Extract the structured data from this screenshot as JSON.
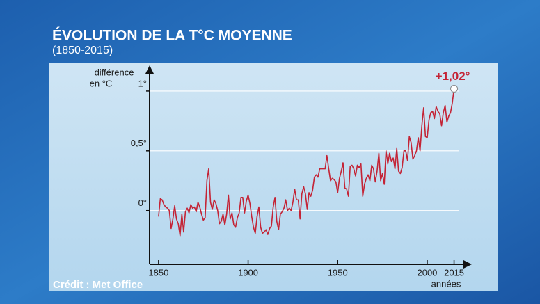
{
  "chart_data": {
    "type": "line",
    "title": "ÉVOLUTION DE LA T°C MOYENNE",
    "subtitle": "(1850-2015)",
    "ylabel": [
      "différence",
      "en °C"
    ],
    "xlabel": "années",
    "annotation": "+1,02°",
    "credit": "Crédit : Met Office",
    "color": "#c42335",
    "grid": true,
    "x": [
      1850,
      1851,
      1852,
      1853,
      1854,
      1855,
      1856,
      1857,
      1858,
      1859,
      1860,
      1861,
      1862,
      1863,
      1864,
      1865,
      1866,
      1867,
      1868,
      1869,
      1870,
      1871,
      1872,
      1873,
      1874,
      1875,
      1876,
      1877,
      1878,
      1879,
      1880,
      1881,
      1882,
      1883,
      1884,
      1885,
      1886,
      1887,
      1888,
      1889,
      1890,
      1891,
      1892,
      1893,
      1894,
      1895,
      1896,
      1897,
      1898,
      1899,
      1900,
      1901,
      1902,
      1903,
      1904,
      1905,
      1906,
      1907,
      1908,
      1909,
      1910,
      1911,
      1912,
      1913,
      1914,
      1915,
      1916,
      1917,
      1918,
      1919,
      1920,
      1921,
      1922,
      1923,
      1924,
      1925,
      1926,
      1927,
      1928,
      1929,
      1930,
      1931,
      1932,
      1933,
      1934,
      1935,
      1936,
      1937,
      1938,
      1939,
      1940,
      1941,
      1942,
      1943,
      1944,
      1945,
      1946,
      1947,
      1948,
      1949,
      1950,
      1951,
      1952,
      1953,
      1954,
      1955,
      1956,
      1957,
      1958,
      1959,
      1960,
      1961,
      1962,
      1963,
      1964,
      1965,
      1966,
      1967,
      1968,
      1969,
      1970,
      1971,
      1972,
      1973,
      1974,
      1975,
      1976,
      1977,
      1978,
      1979,
      1980,
      1981,
      1982,
      1983,
      1984,
      1985,
      1986,
      1987,
      1988,
      1989,
      1990,
      1991,
      1992,
      1993,
      1994,
      1995,
      1996,
      1997,
      1998,
      1999,
      2000,
      2001,
      2002,
      2003,
      2004,
      2005,
      2006,
      2007,
      2008,
      2009,
      2010,
      2011,
      2012,
      2013,
      2014,
      2015
    ],
    "values": [
      -0.05,
      0.1,
      0.09,
      0.05,
      0.03,
      0.02,
      0.0,
      -0.15,
      -0.07,
      0.04,
      -0.07,
      -0.11,
      -0.21,
      -0.03,
      -0.18,
      -0.01,
      0.02,
      -0.02,
      0.05,
      0.02,
      0.03,
      -0.01,
      0.07,
      0.03,
      -0.03,
      -0.08,
      -0.06,
      0.25,
      0.35,
      0.07,
      0.01,
      0.09,
      0.06,
      0.0,
      -0.11,
      -0.09,
      -0.03,
      -0.12,
      -0.03,
      0.13,
      -0.07,
      -0.02,
      -0.12,
      -0.14,
      -0.06,
      -0.02,
      0.11,
      0.11,
      -0.02,
      0.08,
      0.13,
      0.06,
      -0.05,
      -0.14,
      -0.19,
      -0.05,
      0.03,
      -0.14,
      -0.19,
      -0.18,
      -0.16,
      -0.2,
      -0.15,
      -0.13,
      0.03,
      0.11,
      -0.09,
      -0.16,
      -0.03,
      -0.01,
      0.02,
      0.09,
      0.0,
      0.02,
      0.0,
      0.07,
      0.18,
      0.09,
      0.09,
      -0.07,
      0.14,
      0.2,
      0.14,
      0.01,
      0.15,
      0.12,
      0.17,
      0.28,
      0.3,
      0.28,
      0.35,
      0.35,
      0.35,
      0.35,
      0.46,
      0.35,
      0.25,
      0.27,
      0.26,
      0.24,
      0.15,
      0.27,
      0.33,
      0.4,
      0.19,
      0.18,
      0.12,
      0.37,
      0.38,
      0.35,
      0.29,
      0.38,
      0.36,
      0.39,
      0.12,
      0.22,
      0.27,
      0.3,
      0.25,
      0.38,
      0.35,
      0.24,
      0.33,
      0.48,
      0.25,
      0.31,
      0.22,
      0.5,
      0.39,
      0.48,
      0.41,
      0.44,
      0.35,
      0.52,
      0.33,
      0.31,
      0.36,
      0.5,
      0.5,
      0.42,
      0.62,
      0.57,
      0.43,
      0.46,
      0.5,
      0.61,
      0.5,
      0.71,
      0.86,
      0.62,
      0.61,
      0.76,
      0.82,
      0.83,
      0.77,
      0.87,
      0.83,
      0.81,
      0.71,
      0.82,
      0.88,
      0.74,
      0.79,
      0.82,
      0.9,
      1.02
    ],
    "xlim": [
      1845,
      2021
    ],
    "xticks": [
      1850,
      1900,
      1950,
      2000,
      2015
    ],
    "ylim": [
      -0.45,
      1.18
    ],
    "yticks": [
      {
        "value": 0,
        "label": "0°"
      },
      {
        "value": 0.5,
        "label": "0,5°"
      },
      {
        "value": 1,
        "label": "1°"
      }
    ]
  }
}
